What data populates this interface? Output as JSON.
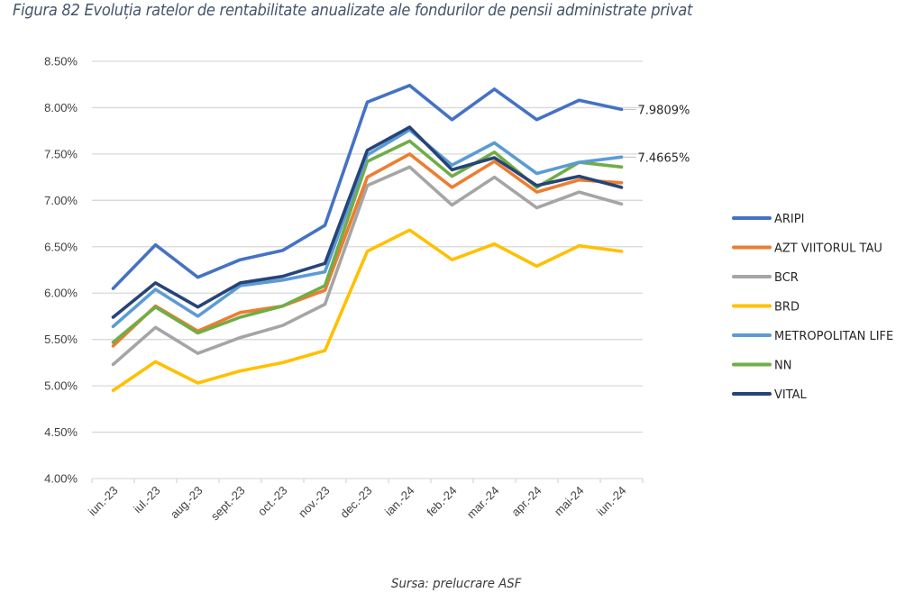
{
  "caption": "Figura 82 Evoluția ratelor de rentabilitate anualizate ale fondurilor de pensii administrate privat",
  "source": "Sursa: prelucrare ASF",
  "chart_data": {
    "type": "line",
    "title": "Figura 82 Evoluția ratelor de rentabilitate anualizate ale fondurilor de pensii administrate privat",
    "xlabel": "",
    "ylabel": "",
    "ylim": [
      4.0,
      8.5
    ],
    "y_ticks": [
      "4.00%",
      "4.50%",
      "5.00%",
      "5.50%",
      "6.00%",
      "6.50%",
      "7.00%",
      "7.50%",
      "8.00%",
      "8.50%"
    ],
    "y_tick_values": [
      4.0,
      4.5,
      5.0,
      5.5,
      6.0,
      6.5,
      7.0,
      7.5,
      8.0,
      8.5
    ],
    "grid": true,
    "legend_position": "right",
    "categories": [
      "iun.-23",
      "iul.-23",
      "aug.-23",
      "sept.-23",
      "oct.-23",
      "nov.-23",
      "dec.-23",
      "ian.-24",
      "feb.-24",
      "mar.-24",
      "apr.-24",
      "mai-24",
      "iun.-24"
    ],
    "series": [
      {
        "name": "ARIPI",
        "color": "#4472C4",
        "values": [
          6.05,
          6.52,
          6.17,
          6.36,
          6.46,
          6.73,
          8.06,
          8.24,
          7.87,
          8.2,
          7.87,
          8.08,
          7.9809
        ]
      },
      {
        "name": "AZT VIITORUL TAU",
        "color": "#ED7D31",
        "values": [
          5.43,
          5.86,
          5.59,
          5.79,
          5.86,
          6.03,
          7.25,
          7.5,
          7.14,
          7.42,
          7.09,
          7.22,
          7.19
        ]
      },
      {
        "name": "BCR",
        "color": "#A5A5A5",
        "values": [
          5.23,
          5.63,
          5.35,
          5.52,
          5.65,
          5.88,
          7.16,
          7.36,
          6.95,
          7.25,
          6.92,
          7.09,
          6.96
        ]
      },
      {
        "name": "BRD",
        "color": "#FFC000",
        "values": [
          4.95,
          5.26,
          5.03,
          5.16,
          5.25,
          5.38,
          6.45,
          6.68,
          6.36,
          6.53,
          6.29,
          6.51,
          6.45
        ]
      },
      {
        "name": "METROPOLITAN LIFE",
        "color": "#5B9BD5",
        "values": [
          5.64,
          6.04,
          5.75,
          6.08,
          6.14,
          6.23,
          7.49,
          7.76,
          7.38,
          7.62,
          7.29,
          7.41,
          7.4665
        ]
      },
      {
        "name": "NN",
        "color": "#70AD47",
        "values": [
          5.47,
          5.85,
          5.57,
          5.74,
          5.86,
          6.08,
          7.42,
          7.64,
          7.26,
          7.52,
          7.14,
          7.41,
          7.36
        ]
      },
      {
        "name": "VITAL",
        "color": "#264478",
        "values": [
          5.74,
          6.11,
          5.85,
          6.11,
          6.18,
          6.32,
          7.54,
          7.79,
          7.33,
          7.46,
          7.16,
          7.26,
          7.14
        ]
      }
    ],
    "annotations": [
      {
        "series": "ARIPI",
        "category": "iun.-24",
        "text": "7.9809%"
      },
      {
        "series": "METROPOLITAN LIFE",
        "category": "iun.-24",
        "text": "7.4665%"
      }
    ]
  }
}
